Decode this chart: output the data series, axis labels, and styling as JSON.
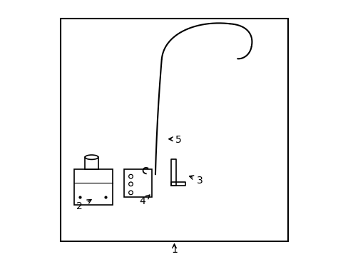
{
  "bg_color": "#ffffff",
  "border_color": "#000000",
  "line_color": "#000000",
  "label_color": "#000000"
}
